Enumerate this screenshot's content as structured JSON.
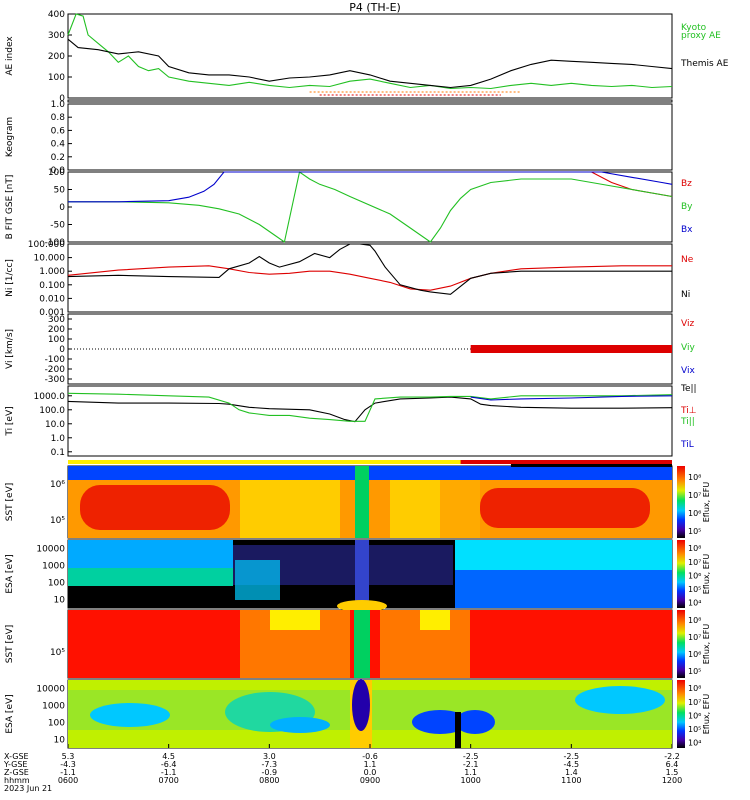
{
  "title": "P4 (TH-E)",
  "date_label": "2023 Jun 21",
  "colors": {
    "green": "#22c022",
    "black": "#000000",
    "red": "#dd0000",
    "blue": "#0000cc",
    "cyan": "#00a0e0",
    "orange": "#ff7700"
  },
  "chart_data": [
    {
      "type": "line",
      "panel": "ae",
      "ylabel": "AE index",
      "ylim": [
        0,
        400
      ],
      "yticks": [
        "400",
        "300",
        "200",
        "100",
        "0"
      ],
      "x_hours": [
        6,
        12
      ],
      "series": [
        {
          "name": "Kyoto proxy AE",
          "color": "green",
          "x": [
            6.0,
            6.08,
            6.15,
            6.2,
            6.3,
            6.4,
            6.5,
            6.6,
            6.7,
            6.8,
            6.9,
            7.0,
            7.2,
            7.4,
            7.6,
            7.8,
            8.0,
            8.2,
            8.4,
            8.6,
            8.8,
            9.0,
            9.2,
            9.4,
            9.6,
            9.8,
            10.0,
            10.2,
            10.4,
            10.6,
            10.8,
            11.0,
            11.2,
            11.4,
            11.6,
            11.8,
            12.0
          ],
          "y": [
            300,
            400,
            390,
            300,
            260,
            220,
            170,
            200,
            150,
            130,
            140,
            100,
            80,
            70,
            60,
            75,
            60,
            50,
            60,
            55,
            80,
            90,
            70,
            50,
            60,
            45,
            50,
            45,
            60,
            70,
            60,
            70,
            60,
            55,
            60,
            50,
            55
          ]
        },
        {
          "name": "Themis AE",
          "color": "black",
          "x": [
            6.0,
            6.1,
            6.3,
            6.5,
            6.7,
            6.9,
            7.0,
            7.2,
            7.4,
            7.6,
            7.8,
            8.0,
            8.2,
            8.4,
            8.6,
            8.8,
            9.0,
            9.2,
            9.4,
            9.6,
            9.8,
            10.0,
            10.2,
            10.4,
            10.6,
            10.8,
            11.0,
            11.2,
            11.4,
            11.6,
            11.8,
            12.0
          ],
          "y": [
            280,
            240,
            230,
            210,
            220,
            200,
            150,
            120,
            110,
            110,
            100,
            80,
            95,
            100,
            110,
            130,
            110,
            80,
            70,
            60,
            50,
            60,
            90,
            130,
            160,
            180,
            175,
            170,
            165,
            160,
            150,
            140
          ]
        }
      ]
    },
    {
      "type": "line",
      "panel": "roi",
      "ylabel": "ROI",
      "series": [
        {
          "name": "ROI",
          "color": "orange",
          "x": [
            8.4,
            10.5
          ]
        },
        {
          "name": "ROI",
          "color": "red",
          "x": [
            8.5,
            10.3
          ]
        },
        {
          "name": "ROI",
          "color": "black",
          "x": [
            8.6,
            10.2
          ]
        }
      ]
    },
    {
      "type": "line",
      "panel": "keogram",
      "ylabel": "Keogram",
      "ylim": [
        0,
        1.0
      ],
      "yticks": [
        "1.0",
        "0.8",
        "0.6",
        "0.4",
        "0.2",
        "0.0"
      ]
    },
    {
      "type": "line",
      "panel": "bfield",
      "ylabel": "B FIT GSE [nT]",
      "ylim": [
        -100,
        100
      ],
      "yticks": [
        "100",
        "50",
        "0",
        "-50",
        "-100"
      ],
      "series": [
        {
          "name": "Bz",
          "color": "red",
          "x": [
            11.2,
            11.4,
            11.6,
            11.8,
            12.0
          ],
          "y": [
            100,
            70,
            50,
            40,
            30
          ]
        },
        {
          "name": "By",
          "color": "green",
          "x": [
            6.0,
            6.5,
            7.0,
            7.3,
            7.5,
            7.7,
            7.9,
            8.05,
            8.15,
            8.3,
            8.4,
            8.5,
            8.65,
            8.8,
            9.2,
            9.4,
            9.6,
            9.7,
            9.8,
            9.9,
            10.0,
            10.2,
            10.5,
            11.0,
            11.4,
            11.8,
            12.0
          ],
          "y": [
            15,
            15,
            12,
            5,
            -5,
            -20,
            -50,
            -80,
            -100,
            100,
            80,
            65,
            50,
            30,
            -20,
            -60,
            -100,
            -60,
            -10,
            25,
            50,
            70,
            80,
            80,
            60,
            40,
            30
          ]
        },
        {
          "name": "Bx",
          "color": "blue",
          "x": [
            6.0,
            6.5,
            7.0,
            7.2,
            7.35,
            7.45,
            7.55,
            11.3,
            11.6,
            11.9,
            12.0
          ],
          "y": [
            15,
            15,
            18,
            28,
            45,
            65,
            100,
            100,
            85,
            70,
            65
          ]
        }
      ]
    },
    {
      "type": "line",
      "panel": "density",
      "ylabel": "Ni [1/cc]",
      "yscale": "log",
      "ylim": [
        0.001,
        100
      ],
      "yticks": [
        "100.000",
        "10.000",
        "1.000",
        "0.100",
        "0.010",
        "0.001"
      ],
      "series": [
        {
          "name": "Ne",
          "color": "red",
          "x": [
            6.0,
            6.5,
            7.0,
            7.4,
            7.6,
            7.8,
            8.0,
            8.2,
            8.4,
            8.6,
            8.8,
            9.0,
            9.2,
            9.4,
            9.6,
            9.8,
            10.0,
            10.2,
            10.5,
            11.0,
            11.5,
            12.0
          ],
          "y": [
            0.5,
            1.2,
            2.0,
            2.5,
            1.5,
            0.8,
            0.6,
            0.7,
            1.0,
            1.0,
            0.6,
            0.3,
            0.15,
            0.05,
            0.04,
            0.08,
            0.3,
            0.7,
            1.5,
            2.0,
            2.5,
            2.5
          ]
        },
        {
          "name": "Ni",
          "color": "black",
          "x": [
            6.0,
            6.5,
            7.0,
            7.5,
            7.6,
            7.8,
            7.9,
            8.0,
            8.1,
            8.3,
            8.45,
            8.6,
            8.7,
            8.8,
            8.9,
            9.0,
            9.05,
            9.15,
            9.3,
            9.5,
            9.6,
            9.8,
            10.0,
            10.2,
            10.5,
            11.0,
            11.5,
            12.0
          ],
          "y": [
            0.4,
            0.5,
            0.4,
            0.35,
            1.5,
            4.0,
            12.0,
            4.0,
            2.0,
            5.0,
            20.0,
            10.0,
            40.0,
            120.0,
            140.0,
            80.0,
            30.0,
            2.0,
            0.1,
            0.04,
            0.03,
            0.02,
            0.3,
            0.7,
            1.0,
            1.0,
            1.0,
            1.0
          ]
        }
      ]
    },
    {
      "type": "line",
      "panel": "velocity",
      "ylabel": "Vi [km/s]",
      "ylim": [
        -350,
        350
      ],
      "yticks": [
        "300",
        "200",
        "100",
        "0",
        "-100",
        "-200",
        "-300"
      ],
      "series": [
        {
          "name": "Viz",
          "color": "red",
          "x": [
            10.0,
            12.0
          ],
          "y": [
            0,
            0
          ]
        },
        {
          "name": "Viy",
          "color": "green",
          "x": [],
          "y": []
        },
        {
          "name": "Vix",
          "color": "blue",
          "x": [],
          "y": []
        }
      ]
    },
    {
      "type": "line",
      "panel": "temperature",
      "ylabel": "Ti [eV]",
      "yscale": "log",
      "ylim": [
        0.05,
        5000
      ],
      "yticks": [
        "1000.0",
        "100.0",
        "10.0",
        "1.0",
        "0.1"
      ],
      "series": [
        {
          "name": "Te||",
          "color": "black",
          "x": [
            6.0,
            6.5,
            7.0,
            7.5,
            7.6,
            7.8,
            8.0,
            8.4,
            8.6,
            8.75,
            8.85,
            8.95,
            9.05,
            9.3,
            9.6,
            9.8,
            10.0,
            10.1,
            10.2,
            10.5,
            11.0,
            11.5,
            12.0
          ],
          "y": [
            400,
            300,
            300,
            280,
            250,
            150,
            120,
            100,
            50,
            20,
            14,
            100,
            300,
            600,
            700,
            800,
            600,
            250,
            200,
            150,
            130,
            130,
            140
          ]
        },
        {
          "name": "Ti⊥",
          "color": "red",
          "x": [],
          "y": []
        },
        {
          "name": "Ti||",
          "color": "green",
          "x": [
            6.0,
            6.5,
            7.0,
            7.4,
            7.6,
            7.7,
            7.8,
            8.0,
            8.2,
            8.4,
            8.6,
            8.8,
            8.95,
            9.05,
            9.3,
            9.6,
            9.8,
            10.0,
            10.2,
            10.5,
            11.0,
            11.5,
            12.0
          ],
          "y": [
            1500,
            1300,
            1000,
            800,
            300,
            100,
            60,
            40,
            40,
            25,
            20,
            15,
            15,
            600,
            800,
            800,
            900,
            900,
            600,
            1000,
            1000,
            1000,
            1200
          ]
        },
        {
          "name": "Ti⊥ (blue)",
          "color": "blue",
          "x": [
            10.0,
            10.2,
            10.5,
            11.0,
            11.5,
            12.0
          ],
          "y": [
            800,
            500,
            600,
            700,
            900,
            1000
          ]
        }
      ]
    },
    {
      "type": "heatmap",
      "panel": "sst_omni_1",
      "ylabel": "SST [eV]",
      "yticks": [
        "10⁶",
        "10⁵"
      ],
      "colorbar_label": "Eflux, EFU",
      "colorbar_ticks": [
        "10⁸",
        "10⁷",
        "10⁶",
        "10⁵"
      ]
    },
    {
      "type": "heatmap",
      "panel": "esa_omni_1",
      "ylabel": "ESA [eV]",
      "yticks": [
        "10000",
        "1000",
        "100",
        "10"
      ],
      "colorbar_label": "Eflux, EFU",
      "colorbar_ticks": [
        "10⁸",
        "10⁷",
        "10⁶",
        "10⁵",
        "10⁴"
      ]
    },
    {
      "type": "heatmap",
      "panel": "sst_omni_2",
      "ylabel": "SST [eV]",
      "yticks": [
        "10⁵"
      ],
      "colorbar_label": "Eflux, EFU",
      "colorbar_ticks": [
        "10⁸",
        "10⁷",
        "10⁶",
        "10⁵"
      ]
    },
    {
      "type": "heatmap",
      "panel": "esa_omni_2",
      "ylabel": "ESA [eV]",
      "yticks": [
        "10000",
        "1000",
        "100",
        "10"
      ],
      "colorbar_label": "Eflux, EFU",
      "colorbar_ticks": [
        "10⁸",
        "10⁷",
        "10⁶",
        "10⁵",
        "10⁴"
      ]
    }
  ],
  "xaxis": {
    "row_labels": [
      "X-GSE",
      "Y-GSE",
      "Z-GSE",
      "hhmm"
    ],
    "columns": [
      {
        "x": "5.3",
        "y": "-4.3",
        "z": "-1.1",
        "t": "0600"
      },
      {
        "x": "4.5",
        "y": "-6.4",
        "z": "-1.1",
        "t": "0700"
      },
      {
        "x": "3.0",
        "y": "-7.3",
        "z": "-0.9",
        "t": "0800"
      },
      {
        "x": "-0.6",
        "y": "1.1",
        "z": "0.0",
        "t": "0900"
      },
      {
        "x": "-2.5",
        "y": "-2.1",
        "z": "1.1",
        "t": "1000"
      },
      {
        "x": "-2.5",
        "y": "-4.5",
        "z": "1.4",
        "t": "1100"
      },
      {
        "x": "-2.2",
        "y": "6.4",
        "z": "1.5",
        "t": "1200"
      }
    ]
  },
  "status_bars": [
    {
      "color": "yellow",
      "from": 6.0,
      "to": 12.0
    },
    {
      "color": "red",
      "from": 9.9,
      "to": 12.0
    },
    {
      "color": "black",
      "from": 10.4,
      "to": 12.0
    }
  ]
}
